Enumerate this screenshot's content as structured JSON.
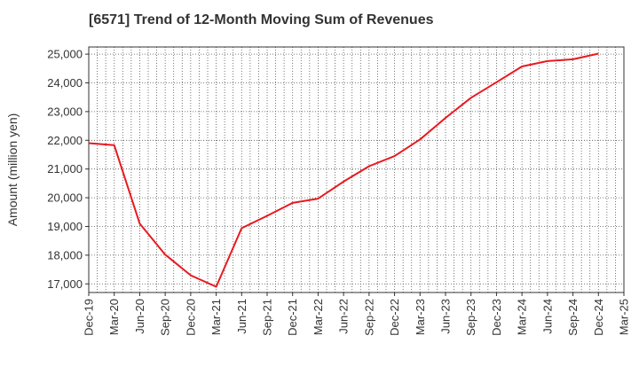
{
  "chart_data": {
    "type": "line",
    "title": "[6571]  Trend of 12-Month Moving Sum of Revenues",
    "xlabel": "",
    "ylabel": "Amount (million yen)",
    "ylim": [
      16700,
      25250
    ],
    "y_ticks": [
      17000,
      18000,
      19000,
      20000,
      21000,
      22000,
      23000,
      24000,
      25000
    ],
    "y_tick_labels": [
      "17,000",
      "18,000",
      "19,000",
      "20,000",
      "21,000",
      "22,000",
      "23,000",
      "24,000",
      "25,000"
    ],
    "x_tick_labels": [
      "Dec-19",
      "Mar-20",
      "Jun-20",
      "Sep-20",
      "Dec-20",
      "Mar-21",
      "Jun-21",
      "Sep-21",
      "Dec-21",
      "Mar-22",
      "Jun-22",
      "Sep-22",
      "Dec-22",
      "Mar-23",
      "Jun-23",
      "Sep-23",
      "Dec-23",
      "Mar-24",
      "Jun-24",
      "Sep-24",
      "Dec-24",
      "Mar-25"
    ],
    "grid": true,
    "series": [
      {
        "color": "#e8191f",
        "x": [
          "Dec-19",
          "Mar-20",
          "Jun-20",
          "Sep-20",
          "Dec-20",
          "Mar-21",
          "Jun-21",
          "Sep-21",
          "Dec-21",
          "Mar-22",
          "Jun-22",
          "Sep-22",
          "Dec-22",
          "Mar-23",
          "Jun-23",
          "Sep-23",
          "Dec-23",
          "Mar-24",
          "Jun-24",
          "Sep-24",
          "Dec-24"
        ],
        "values": [
          21900,
          21830,
          19100,
          18020,
          17300,
          16900,
          18940,
          19370,
          19820,
          19970,
          20560,
          21100,
          21450,
          22030,
          22780,
          23480,
          24020,
          24570,
          24760,
          24820,
          25020
        ]
      }
    ]
  }
}
